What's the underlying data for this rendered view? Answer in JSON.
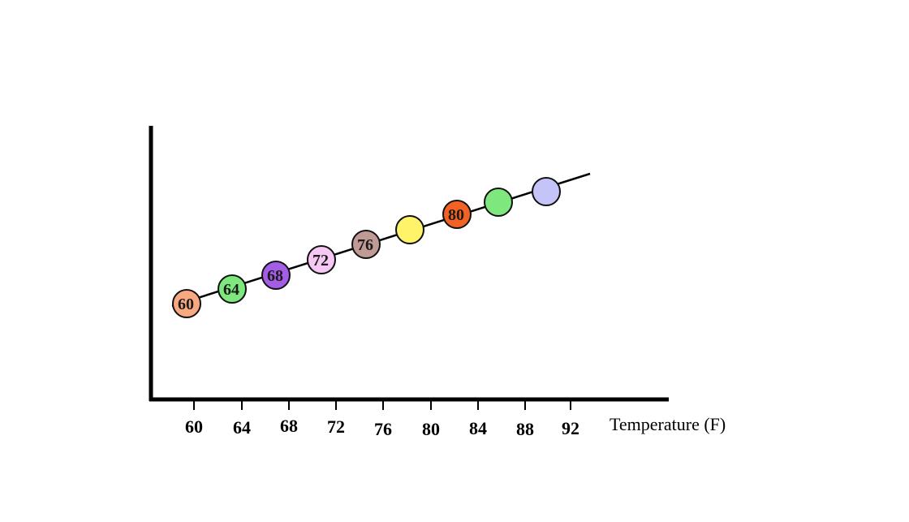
{
  "chart_data": {
    "type": "scatter",
    "title": "",
    "xlabel": "Temperature (F)",
    "ylabel": "",
    "x_ticks": [
      "60",
      "64",
      "68",
      "72",
      "76",
      "80",
      "84",
      "88",
      "92"
    ],
    "points": [
      {
        "label": "60",
        "color": "#f8a982"
      },
      {
        "label": "64",
        "color": "#7ee87e"
      },
      {
        "label": "68",
        "color": "#a45ee6"
      },
      {
        "label": "72",
        "color": "#f6c8f4"
      },
      {
        "label": "76",
        "color": "#c09a94"
      },
      {
        "label": "",
        "color": "#fff36a"
      },
      {
        "label": "80",
        "color": "#f26222"
      },
      {
        "label": "",
        "color": "#7ee87e"
      },
      {
        "label": "",
        "color": "#c4c4f8"
      }
    ],
    "trend_line": true,
    "grid": false,
    "legend": "none"
  }
}
